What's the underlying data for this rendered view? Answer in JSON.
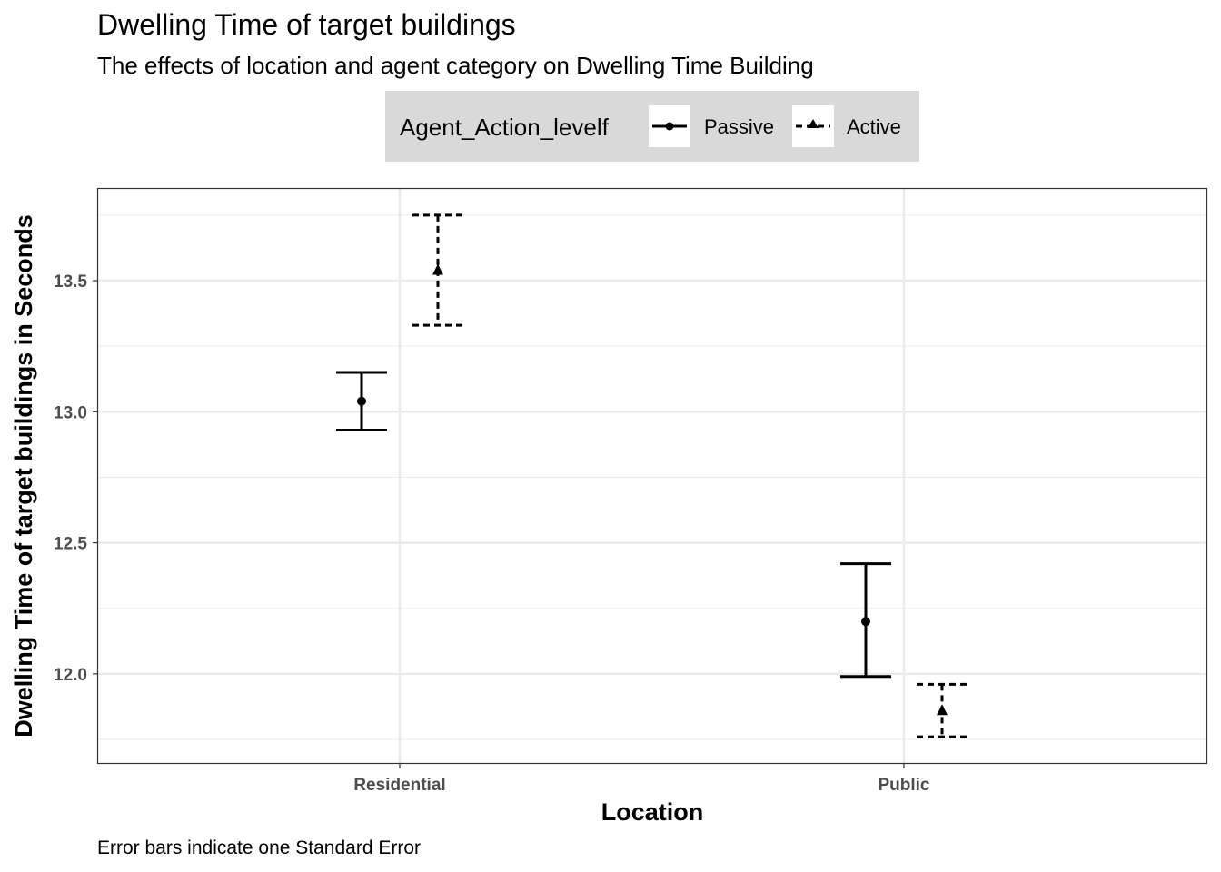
{
  "chart_data": {
    "type": "scatter",
    "title": "Dwelling Time of target buildings",
    "subtitle": "The effects of location and agent category on Dwelling Time Building",
    "caption": "Error bars indicate one Standard Error",
    "xlabel": "Location",
    "ylabel": "Dwelling Time of target buildings in Seconds",
    "categories": [
      "Residential",
      "Public"
    ],
    "ylim": [
      11.66,
      13.85
    ],
    "yticks": [
      12.0,
      12.5,
      13.0,
      13.5
    ],
    "ytick_labels": [
      "12.0",
      "12.5",
      "13.0",
      "13.5"
    ],
    "grid": true,
    "legend": {
      "title": "Agent_Action_levelf",
      "placement": "top"
    },
    "series": [
      {
        "name": "Passive",
        "marker": "circle",
        "line": "solid",
        "values": [
          13.04,
          12.2
        ],
        "lower": [
          12.93,
          11.99
        ],
        "upper": [
          13.15,
          12.42
        ]
      },
      {
        "name": "Active",
        "marker": "triangle",
        "line": "dashed",
        "values": [
          13.54,
          11.86
        ],
        "lower": [
          13.33,
          11.76
        ],
        "upper": [
          13.75,
          11.96
        ]
      }
    ],
    "colors": {
      "panel_border": "#333333",
      "grid": "#ebebeb",
      "legend_bg": "#d9d9d9",
      "tick_text": "#4d4d4d"
    }
  }
}
